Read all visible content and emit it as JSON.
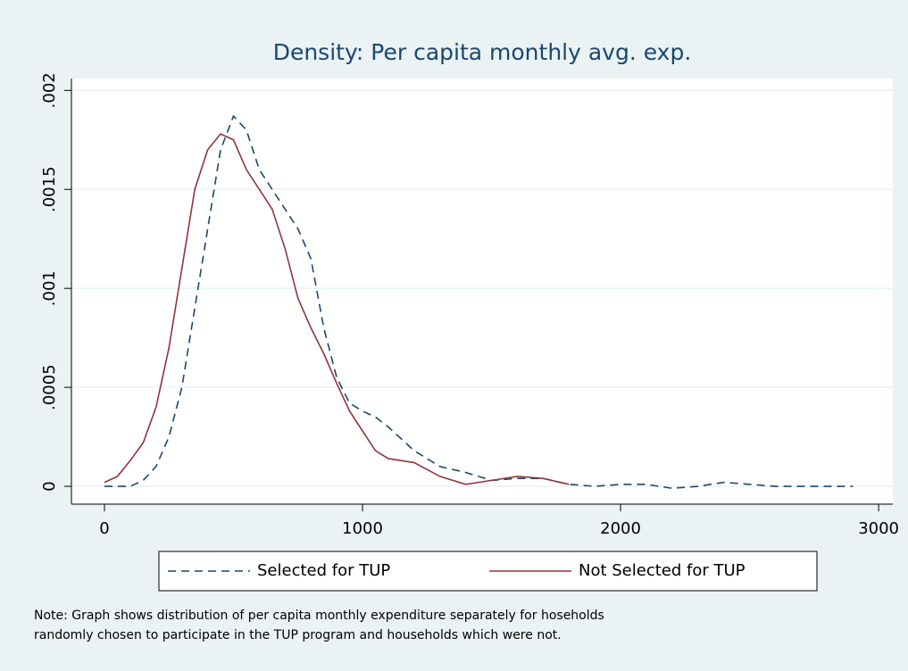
{
  "chart_data": {
    "type": "line",
    "title": "Density: Per capita monthly avg. exp.",
    "note": [
      "Note: Graph shows distribution of per capita monthly expenditure separately for hoseholds",
      "randomly chosen to participate in the TUP program and households which were not."
    ],
    "series": [
      {
        "name": "Selected for TUP",
        "color": "#1a476f",
        "dash": true,
        "x": [
          0,
          100,
          150,
          200,
          250,
          300,
          350,
          400,
          450,
          500,
          550,
          600,
          650,
          700,
          750,
          800,
          850,
          900,
          950,
          1000,
          1050,
          1100,
          1200,
          1300,
          1400,
          1500,
          1600,
          1700,
          1800,
          1900,
          2000,
          2100,
          2200,
          2300,
          2400,
          2500,
          2600,
          2700,
          2900
        ],
        "values": [
          0,
          0,
          3e-05,
          0.0001,
          0.00025,
          0.0005,
          0.0009,
          0.0013,
          0.0017,
          0.00187,
          0.0018,
          0.0016,
          0.0015,
          0.0014,
          0.0013,
          0.00115,
          0.0008,
          0.00055,
          0.00042,
          0.00038,
          0.00035,
          0.0003,
          0.00018,
          0.0001,
          7e-05,
          3e-05,
          4e-05,
          4e-05,
          1e-05,
          0,
          1e-05,
          1e-05,
          -1e-05,
          0,
          2e-05,
          1e-05,
          0,
          0,
          0
        ]
      },
      {
        "name": "Not Selected for TUP",
        "color": "#90353b",
        "dash": false,
        "x": [
          0,
          50,
          100,
          150,
          200,
          250,
          300,
          350,
          400,
          450,
          500,
          550,
          600,
          650,
          700,
          750,
          800,
          850,
          900,
          950,
          1000,
          1050,
          1100,
          1200,
          1300,
          1400,
          1500,
          1600,
          1700,
          1800
        ],
        "values": [
          2e-05,
          5e-05,
          0.00013,
          0.00022,
          0.0004,
          0.0007,
          0.0011,
          0.0015,
          0.0017,
          0.00178,
          0.00175,
          0.0016,
          0.0015,
          0.0014,
          0.0012,
          0.00095,
          0.0008,
          0.00067,
          0.00052,
          0.00038,
          0.00028,
          0.00018,
          0.00014,
          0.00012,
          5e-05,
          1e-05,
          3e-05,
          5e-05,
          4e-05,
          1e-05
        ]
      }
    ],
    "xlim": [
      -128,
      3055
    ],
    "ylim": [
      -9e-05,
      0.00206
    ],
    "xticks": [
      0,
      1000,
      2000,
      3000
    ],
    "yticks": [
      0,
      {
        "value": 0.0005,
        "label": ".0005"
      },
      {
        "value": 0.001,
        "label": ".001"
      },
      {
        "value": 0.0015,
        "label": ".0015"
      },
      {
        "value": 0.002,
        "label": ".002"
      }
    ],
    "grid": true
  }
}
